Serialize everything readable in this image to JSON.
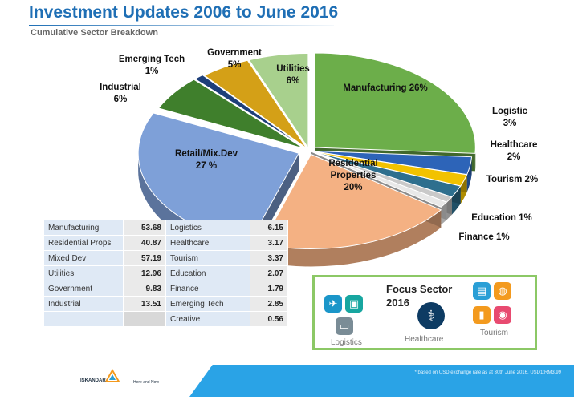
{
  "header": {
    "title": "Investment Updates 2006 to June 2016",
    "subtitle": "Cumulative Sector Breakdown"
  },
  "chart_data": {
    "type": "pie",
    "title": "Investment Updates 2006 to June 2016",
    "subtitle": "Cumulative Sector Breakdown",
    "slices": [
      {
        "label": "Manufacturing",
        "value": 26,
        "display": "26%",
        "color": "#6cae4a"
      },
      {
        "label": "Logistic",
        "value": 3,
        "display": "3%",
        "color": "#2d64b8"
      },
      {
        "label": "Healthcare",
        "value": 2,
        "display": "2%",
        "color": "#f2c200"
      },
      {
        "label": "Tourism",
        "value": 2,
        "display": "2%",
        "color": "#2e6f8e"
      },
      {
        "label": "Education",
        "value": 1,
        "display": "1%",
        "color": "#c9c9c9"
      },
      {
        "label": "Finance",
        "value": 1,
        "display": "1%",
        "color": "#e8e8e8"
      },
      {
        "label": "Residential Properties",
        "value": 20,
        "display": "20%",
        "color": "#f4b183"
      },
      {
        "label": "Retail/Mix.Dev",
        "value": 27,
        "display": "27 %",
        "color": "#7ea0d8"
      },
      {
        "label": "Industrial",
        "value": 6,
        "display": "6%",
        "color": "#3f7f2c"
      },
      {
        "label": "Emerging Tech",
        "value": 1,
        "display": "1%",
        "color": "#1e3f7a"
      },
      {
        "label": "Government",
        "value": 5,
        "display": "5%",
        "color": "#d4a017"
      },
      {
        "label": "Utilities",
        "value": 6,
        "display": "6%",
        "color": "#a8d08d"
      }
    ]
  },
  "table": {
    "left": [
      {
        "name": "Manufacturing",
        "value": "53.68"
      },
      {
        "name": "Residential Props",
        "value": "40.87"
      },
      {
        "name": "Mixed Dev",
        "value": "57.19"
      },
      {
        "name": "Utilities",
        "value": "12.96"
      },
      {
        "name": "Government",
        "value": "9.83"
      },
      {
        "name": "Industrial",
        "value": "13.51"
      }
    ],
    "right": [
      {
        "name": "Logistics",
        "value": "6.15"
      },
      {
        "name": "Healthcare",
        "value": "3.17"
      },
      {
        "name": "Tourism",
        "value": "3.37"
      },
      {
        "name": "Education",
        "value": "2.07"
      },
      {
        "name": "Finance",
        "value": "1.79"
      },
      {
        "name": "Emerging Tech",
        "value": "2.85"
      },
      {
        "name": "Creative",
        "value": "0.56"
      }
    ]
  },
  "focus": {
    "title_line1": "Focus Sector",
    "title_line2": "2016",
    "logistics_label": "Logistics",
    "healthcare_label": "Healthcare",
    "tourism_label": "Tourism"
  },
  "footer": {
    "logo_name": "ISKANDAR",
    "tagline": "Here and Now",
    "footnote": "* based on USD exchange rate as at 30th June 2016, USD1:RM3.99"
  }
}
